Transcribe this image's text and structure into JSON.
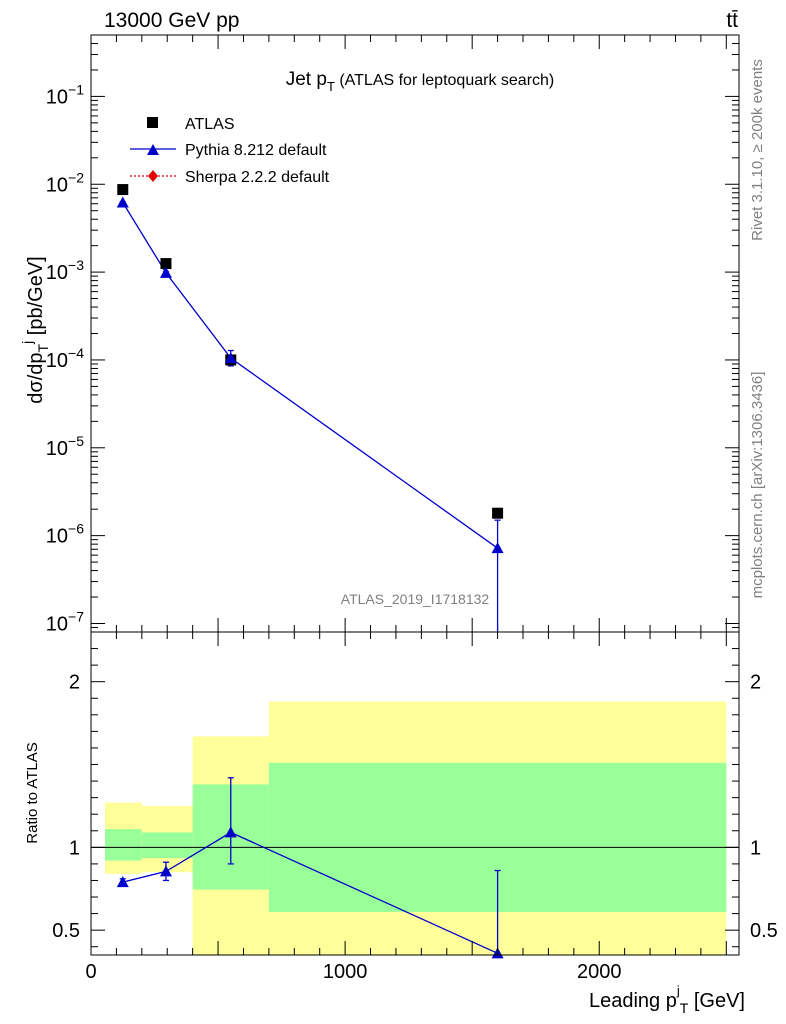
{
  "header": {
    "energy_label": "13000 GeV pp",
    "process_label": "tt̄"
  },
  "side_labels": {
    "rivet": "Rivet 3.1.10, ≥ 200k events",
    "mcplots": "mcplots.cern.ch [arXiv:1306.3436]"
  },
  "chart_data": [
    {
      "type": "scatter",
      "panel": "main",
      "title_main": "Jet p",
      "title_sub": "T",
      "title_rest": " (ATLAS for leptoquark search)",
      "ylabel": "dσ/dp_T^j [pb/GeV]",
      "yscale": "log",
      "ylim": [
        8e-08,
        0.5
      ],
      "xlim": [
        0,
        2550
      ],
      "analysis_label": "ATLAS_2019_I1718132",
      "legend_position": "top-left",
      "y_tick_labels": [
        {
          "v": 1e-07,
          "base": "10",
          "exp": "−7"
        },
        {
          "v": 1e-06,
          "base": "10",
          "exp": "−6"
        },
        {
          "v": 1e-05,
          "base": "10",
          "exp": "−5"
        },
        {
          "v": 0.0001,
          "base": "10",
          "exp": "−4"
        },
        {
          "v": 0.001,
          "base": "10",
          "exp": "−3"
        },
        {
          "v": 0.01,
          "base": "10",
          "exp": "−2"
        },
        {
          "v": 0.1,
          "base": "10",
          "exp": "−1"
        }
      ],
      "series": [
        {
          "name": "ATLAS",
          "marker": "square",
          "color": "#000000",
          "x": [
            125,
            295,
            550,
            1600
          ],
          "y": [
            0.0087,
            0.00125,
            0.0001,
            1.8e-06
          ]
        },
        {
          "name": "Pythia 8.212 default",
          "marker": "triangle",
          "color": "#0000cc",
          "x": [
            125,
            295,
            550,
            1600
          ],
          "y": [
            0.0062,
            0.00098,
            0.000105,
            7.2e-07
          ],
          "yerr_lo": [
            0.0061,
            0.00096,
            8.55e-05,
            8e-08
          ],
          "yerr_hi": [
            0.0063,
            0.00101,
            0.000128,
            1.5e-06
          ]
        },
        {
          "name": "Sherpa 2.2.2 default",
          "marker": "diamond",
          "color": "#e00000",
          "x": [],
          "y": []
        }
      ]
    },
    {
      "type": "scatter",
      "panel": "ratio",
      "ylabel": "Ratio to ATLAS",
      "xlabel_main": "Leading p",
      "xlabel_sup": "j",
      "xlabel_sub": "T",
      "xlabel_rest": " [GeV]",
      "ylim": [
        0.35,
        2.3
      ],
      "xlim": [
        0,
        2550
      ],
      "x_ticks": [
        {
          "v": 0,
          "label": "0"
        },
        {
          "v": 1000,
          "label": "1000"
        },
        {
          "v": 2000,
          "label": "2000"
        }
      ],
      "y_ticks": [
        {
          "v": 0.5,
          "label": "0.5"
        },
        {
          "v": 1,
          "label": "1"
        },
        {
          "v": 2,
          "label": "2"
        }
      ],
      "bands": [
        {
          "x0": 55,
          "x1": 200,
          "yellow": [
            0.84,
            1.27
          ],
          "green": [
            0.92,
            1.11
          ]
        },
        {
          "x0": 200,
          "x1": 400,
          "yellow": [
            0.85,
            1.25
          ],
          "green": [
            0.935,
            1.09
          ]
        },
        {
          "x0": 400,
          "x1": 700,
          "yellow": [
            0.35,
            1.67
          ],
          "green": [
            0.745,
            1.38
          ]
        },
        {
          "x0": 700,
          "x1": 2500,
          "yellow": [
            0.35,
            1.88
          ],
          "green": [
            0.61,
            1.51
          ]
        }
      ],
      "series": [
        {
          "name": "Pythia 8.212 default",
          "color": "#0000cc",
          "x": [
            125,
            295,
            550,
            1600
          ],
          "y": [
            0.79,
            0.855,
            1.09,
            0.36
          ],
          "yerr_lo": [
            0.77,
            0.8,
            0.9,
            0.36
          ],
          "yerr_hi": [
            0.81,
            0.91,
            1.42,
            0.86
          ]
        }
      ]
    }
  ]
}
